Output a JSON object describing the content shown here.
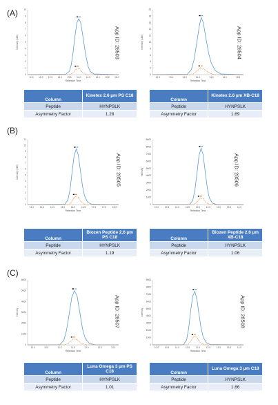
{
  "panels": [
    {
      "label": "(A)"
    },
    {
      "label": "(B)"
    },
    {
      "label": "(C)"
    }
  ],
  "cards": [
    {
      "app_id": "App ID: 28503",
      "column_header": "Column",
      "column_name": "Kinetex 2.6 µm PS C18",
      "peptide_label": "Peptide",
      "peptide": "HYNPSLK",
      "asym_label": "Asymmetry Factor",
      "asym": "1.28"
    },
    {
      "app_id": "App ID: 28504",
      "column_header": "Column",
      "column_name": "Kinetex 2.6 µm XB-C18",
      "peptide_label": "Peptide",
      "peptide": "HYNPSLK",
      "asym_label": "Asymmetry Factor",
      "asym": "1.69"
    },
    {
      "app_id": "App ID: 28505",
      "column_header": "Column",
      "column_name": "Biozen Peptide 2.6 µm PS C18",
      "peptide_label": "Peptide",
      "peptide": "HYNPSLK",
      "asym_label": "Asymmetry Factor",
      "asym": "1.19"
    },
    {
      "app_id": "App ID: 28506",
      "column_header": "Column",
      "column_name": "Biozen Peptide 2.6 µm XB-C18",
      "peptide_label": "Peptide",
      "peptide": "HYNPSLK",
      "asym_label": "Asymmetry Factor",
      "asym": "1.06"
    },
    {
      "app_id": "App ID: 28507",
      "column_header": "Column",
      "column_name": "Luna Omega 3 µm PS C18",
      "peptide_label": "Peptide",
      "peptide": "HYNPSLK",
      "asym_label": "Asymmetry Factor",
      "asym": "1.01"
    },
    {
      "app_id": "App ID: 28508",
      "column_header": "Column",
      "column_name": "Luna Omega 3 µm C18",
      "peptide_label": "Peptide",
      "peptide": "HYNPSLK",
      "asym_label": "Asymmetry Factor",
      "asym": "1.66"
    }
  ],
  "colors": {
    "main_peak": "#5b9bd5",
    "minor_peak": "#ed7d31",
    "header_blue": "#4a7cc1"
  },
  "chart_data": [
    {
      "type": "line",
      "xlabel": "Retention Time",
      "ylabel": "Intensity (1E6)",
      "x_ticks": [
        "11.5",
        "12.0",
        "12.5",
        "13.0",
        "13.5",
        "14.0",
        "14.5",
        "15.0",
        "15.5",
        "16.0"
      ],
      "y_ticks": [
        "0",
        "1",
        "2",
        "3",
        "4",
        "5",
        "6",
        "7",
        "8",
        "9",
        "10"
      ],
      "xlim": [
        11.3,
        16.1
      ],
      "ylim": [
        0,
        10
      ],
      "series": [
        {
          "x": [
            11.3,
            13.3,
            13.5,
            13.6,
            13.7,
            13.8,
            13.9,
            14.0,
            14.1,
            14.2,
            14.3,
            14.4,
            14.5,
            14.6,
            14.8,
            16.1
          ],
          "y": [
            0,
            0.05,
            0.5,
            1.5,
            3.5,
            6.0,
            8.0,
            8.6,
            8.0,
            6.2,
            4.2,
            2.5,
            1.2,
            0.5,
            0.1,
            0
          ]
        },
        {
          "x": [
            11.3,
            13.55,
            13.75,
            13.9,
            14.05,
            14.2,
            14.4,
            16.1
          ],
          "y": [
            0,
            0,
            0.4,
            1.0,
            0.9,
            0.3,
            0,
            0
          ]
        }
      ]
    },
    {
      "type": "line",
      "xlabel": "Retention Time",
      "ylabel": "Intensity (1E6)",
      "x_ticks": [
        "12.5",
        "13.0",
        "13.5",
        "14.0",
        "14.5",
        "15.0",
        "15.5"
      ],
      "y_ticks": [
        "0",
        "2",
        "4",
        "6",
        "8",
        "10",
        "12",
        "14",
        "16",
        "18",
        "20"
      ],
      "xlim": [
        12.3,
        15.7
      ],
      "ylim": [
        0,
        20
      ],
      "series": [
        {
          "x": [
            12.3,
            13.6,
            13.75,
            13.85,
            13.95,
            14.05,
            14.12,
            14.2,
            14.3,
            14.4,
            14.5,
            14.65,
            14.85,
            15.7
          ],
          "y": [
            0,
            0.1,
            1.5,
            4.5,
            9.5,
            15.0,
            17.6,
            16.0,
            11.0,
            6.5,
            3.5,
            1.2,
            0.2,
            0
          ]
        },
        {
          "x": [
            12.3,
            13.8,
            13.95,
            14.1,
            14.25,
            14.4,
            14.6,
            15.7
          ],
          "y": [
            0,
            0,
            1.0,
            2.1,
            1.6,
            0.6,
            0,
            0
          ]
        }
      ]
    },
    {
      "type": "line",
      "xlabel": "Retention Time",
      "ylabel": "Intensity (1E6)",
      "x_ticks": [
        "14.0",
        "14.5",
        "15.0",
        "15.5",
        "16.0",
        "16.5",
        "17.0",
        "17.5",
        "18.0"
      ],
      "y_ticks": [
        "0",
        "1",
        "2",
        "3",
        "4",
        "5",
        "6",
        "7",
        "8",
        "9",
        "10",
        "11"
      ],
      "xlim": [
        13.8,
        18.2
      ],
      "ylim": [
        0,
        11
      ],
      "series": [
        {
          "x": [
            13.8,
            15.6,
            15.75,
            15.85,
            15.95,
            16.05,
            16.15,
            16.25,
            16.35,
            16.45,
            16.55,
            16.7,
            16.9,
            18.2
          ],
          "y": [
            0,
            0.05,
            0.8,
            2.5,
            5.5,
            8.3,
            9.4,
            8.4,
            5.8,
            3.2,
            1.5,
            0.4,
            0.05,
            0
          ]
        },
        {
          "x": [
            13.8,
            15.8,
            15.95,
            16.1,
            16.25,
            16.4,
            16.6,
            18.2
          ],
          "y": [
            0,
            0,
            0.6,
            1.4,
            1.2,
            0.4,
            0,
            0
          ]
        }
      ]
    },
    {
      "type": "line",
      "xlabel": "Retention Time",
      "ylabel": "Intensity",
      "x_ticks": [
        "10.0",
        "10.5",
        "11.0",
        "11.5",
        "12.0",
        "12.5",
        "13.0",
        "13.5",
        "14.0"
      ],
      "y_ticks": [
        "0",
        "1000",
        "2000",
        "3000",
        "4000",
        "5000",
        "6000",
        "7000",
        "8000",
        "9000"
      ],
      "xlim": [
        9.8,
        14.2
      ],
      "ylim": [
        0,
        9000
      ],
      "series": [
        {
          "x": [
            9.8,
            11.6,
            11.75,
            11.85,
            11.95,
            12.05,
            12.15,
            12.25,
            12.35,
            12.45,
            12.55,
            12.7,
            12.9,
            14.2
          ],
          "y": [
            0,
            20,
            600,
            2000,
            4300,
            6800,
            7800,
            6900,
            4500,
            2300,
            900,
            200,
            20,
            0
          ]
        },
        {
          "x": [
            9.8,
            11.8,
            11.95,
            12.1,
            12.25,
            12.4,
            12.6,
            14.2
          ],
          "y": [
            0,
            0,
            350,
            900,
            800,
            250,
            0,
            0
          ]
        }
      ]
    },
    {
      "type": "line",
      "xlabel": "Retention Time",
      "ylabel": "Intensity",
      "x_ticks": [
        "10.0",
        "10.5",
        "11.0",
        "11.5",
        "12.0",
        "12.5",
        "13.0"
      ],
      "y_ticks": [
        "0",
        "1000",
        "2000",
        "3000",
        "4000",
        "5000",
        "6000"
      ],
      "xlim": [
        9.8,
        13.2
      ],
      "ylim": [
        0,
        6000
      ],
      "series": [
        {
          "x": [
            9.8,
            11.0,
            11.15,
            11.25,
            11.35,
            11.45,
            11.55,
            11.65,
            11.75,
            11.85,
            11.95,
            12.1,
            12.3,
            13.2
          ],
          "y": [
            0,
            10,
            400,
            1300,
            2800,
            4400,
            5000,
            4500,
            3000,
            1500,
            600,
            150,
            10,
            0
          ]
        },
        {
          "x": [
            9.8,
            11.2,
            11.35,
            11.5,
            11.65,
            11.8,
            12.0,
            13.2
          ],
          "y": [
            0,
            0,
            200,
            550,
            480,
            150,
            0,
            0
          ]
        }
      ]
    },
    {
      "type": "line",
      "xlabel": "Retention Time",
      "ylabel": "Intensity",
      "x_ticks": [
        "10.0",
        "10.5",
        "11.0",
        "11.5",
        "12.0",
        "12.5",
        "13.0",
        "13.5",
        "14.0"
      ],
      "y_ticks": [
        "0",
        "1000",
        "2000",
        "3000",
        "4000",
        "5000",
        "6000",
        "7000",
        "8000",
        "9000"
      ],
      "xlim": [
        9.8,
        14.2
      ],
      "ylim": [
        0,
        9000
      ],
      "series": [
        {
          "x": [
            9.8,
            11.3,
            11.45,
            11.55,
            11.65,
            11.75,
            11.85,
            11.95,
            12.05,
            12.15,
            12.25,
            12.4,
            12.6,
            14.2
          ],
          "y": [
            0,
            20,
            700,
            2300,
            4800,
            6800,
            7400,
            6300,
            4200,
            2300,
            1100,
            300,
            30,
            0
          ]
        },
        {
          "x": [
            9.8,
            11.5,
            11.65,
            11.8,
            11.95,
            12.1,
            12.3,
            14.2
          ],
          "y": [
            0,
            0,
            500,
            1200,
            1050,
            350,
            0,
            0
          ]
        }
      ]
    }
  ]
}
